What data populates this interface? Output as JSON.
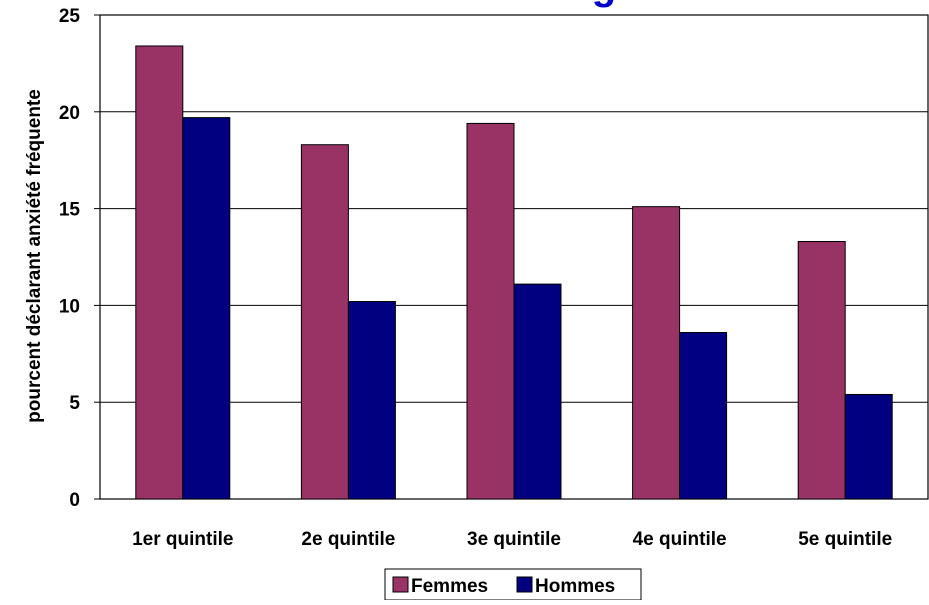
{
  "chart_data": {
    "type": "bar",
    "title": "g",
    "ylabel": "pourcent déclarant anxiété fréquente",
    "xlabel": "",
    "categories": [
      "1er quintile",
      "2e quintile",
      "3e quintile",
      "4e quintile",
      "5e quintile"
    ],
    "series": [
      {
        "name": "Femmes",
        "values": [
          23.4,
          18.3,
          19.4,
          15.1,
          13.3
        ]
      },
      {
        "name": "Hommes",
        "values": [
          19.7,
          10.2,
          11.1,
          8.6,
          5.4
        ]
      }
    ],
    "ylim": [
      0,
      25
    ],
    "yticks": [
      0,
      5,
      10,
      15,
      20,
      25
    ],
    "grid": true,
    "legend_position": "bottom-center"
  },
  "colors": {
    "Femmes": "#993366",
    "Hommes": "#000080",
    "title": "#0000cc"
  }
}
